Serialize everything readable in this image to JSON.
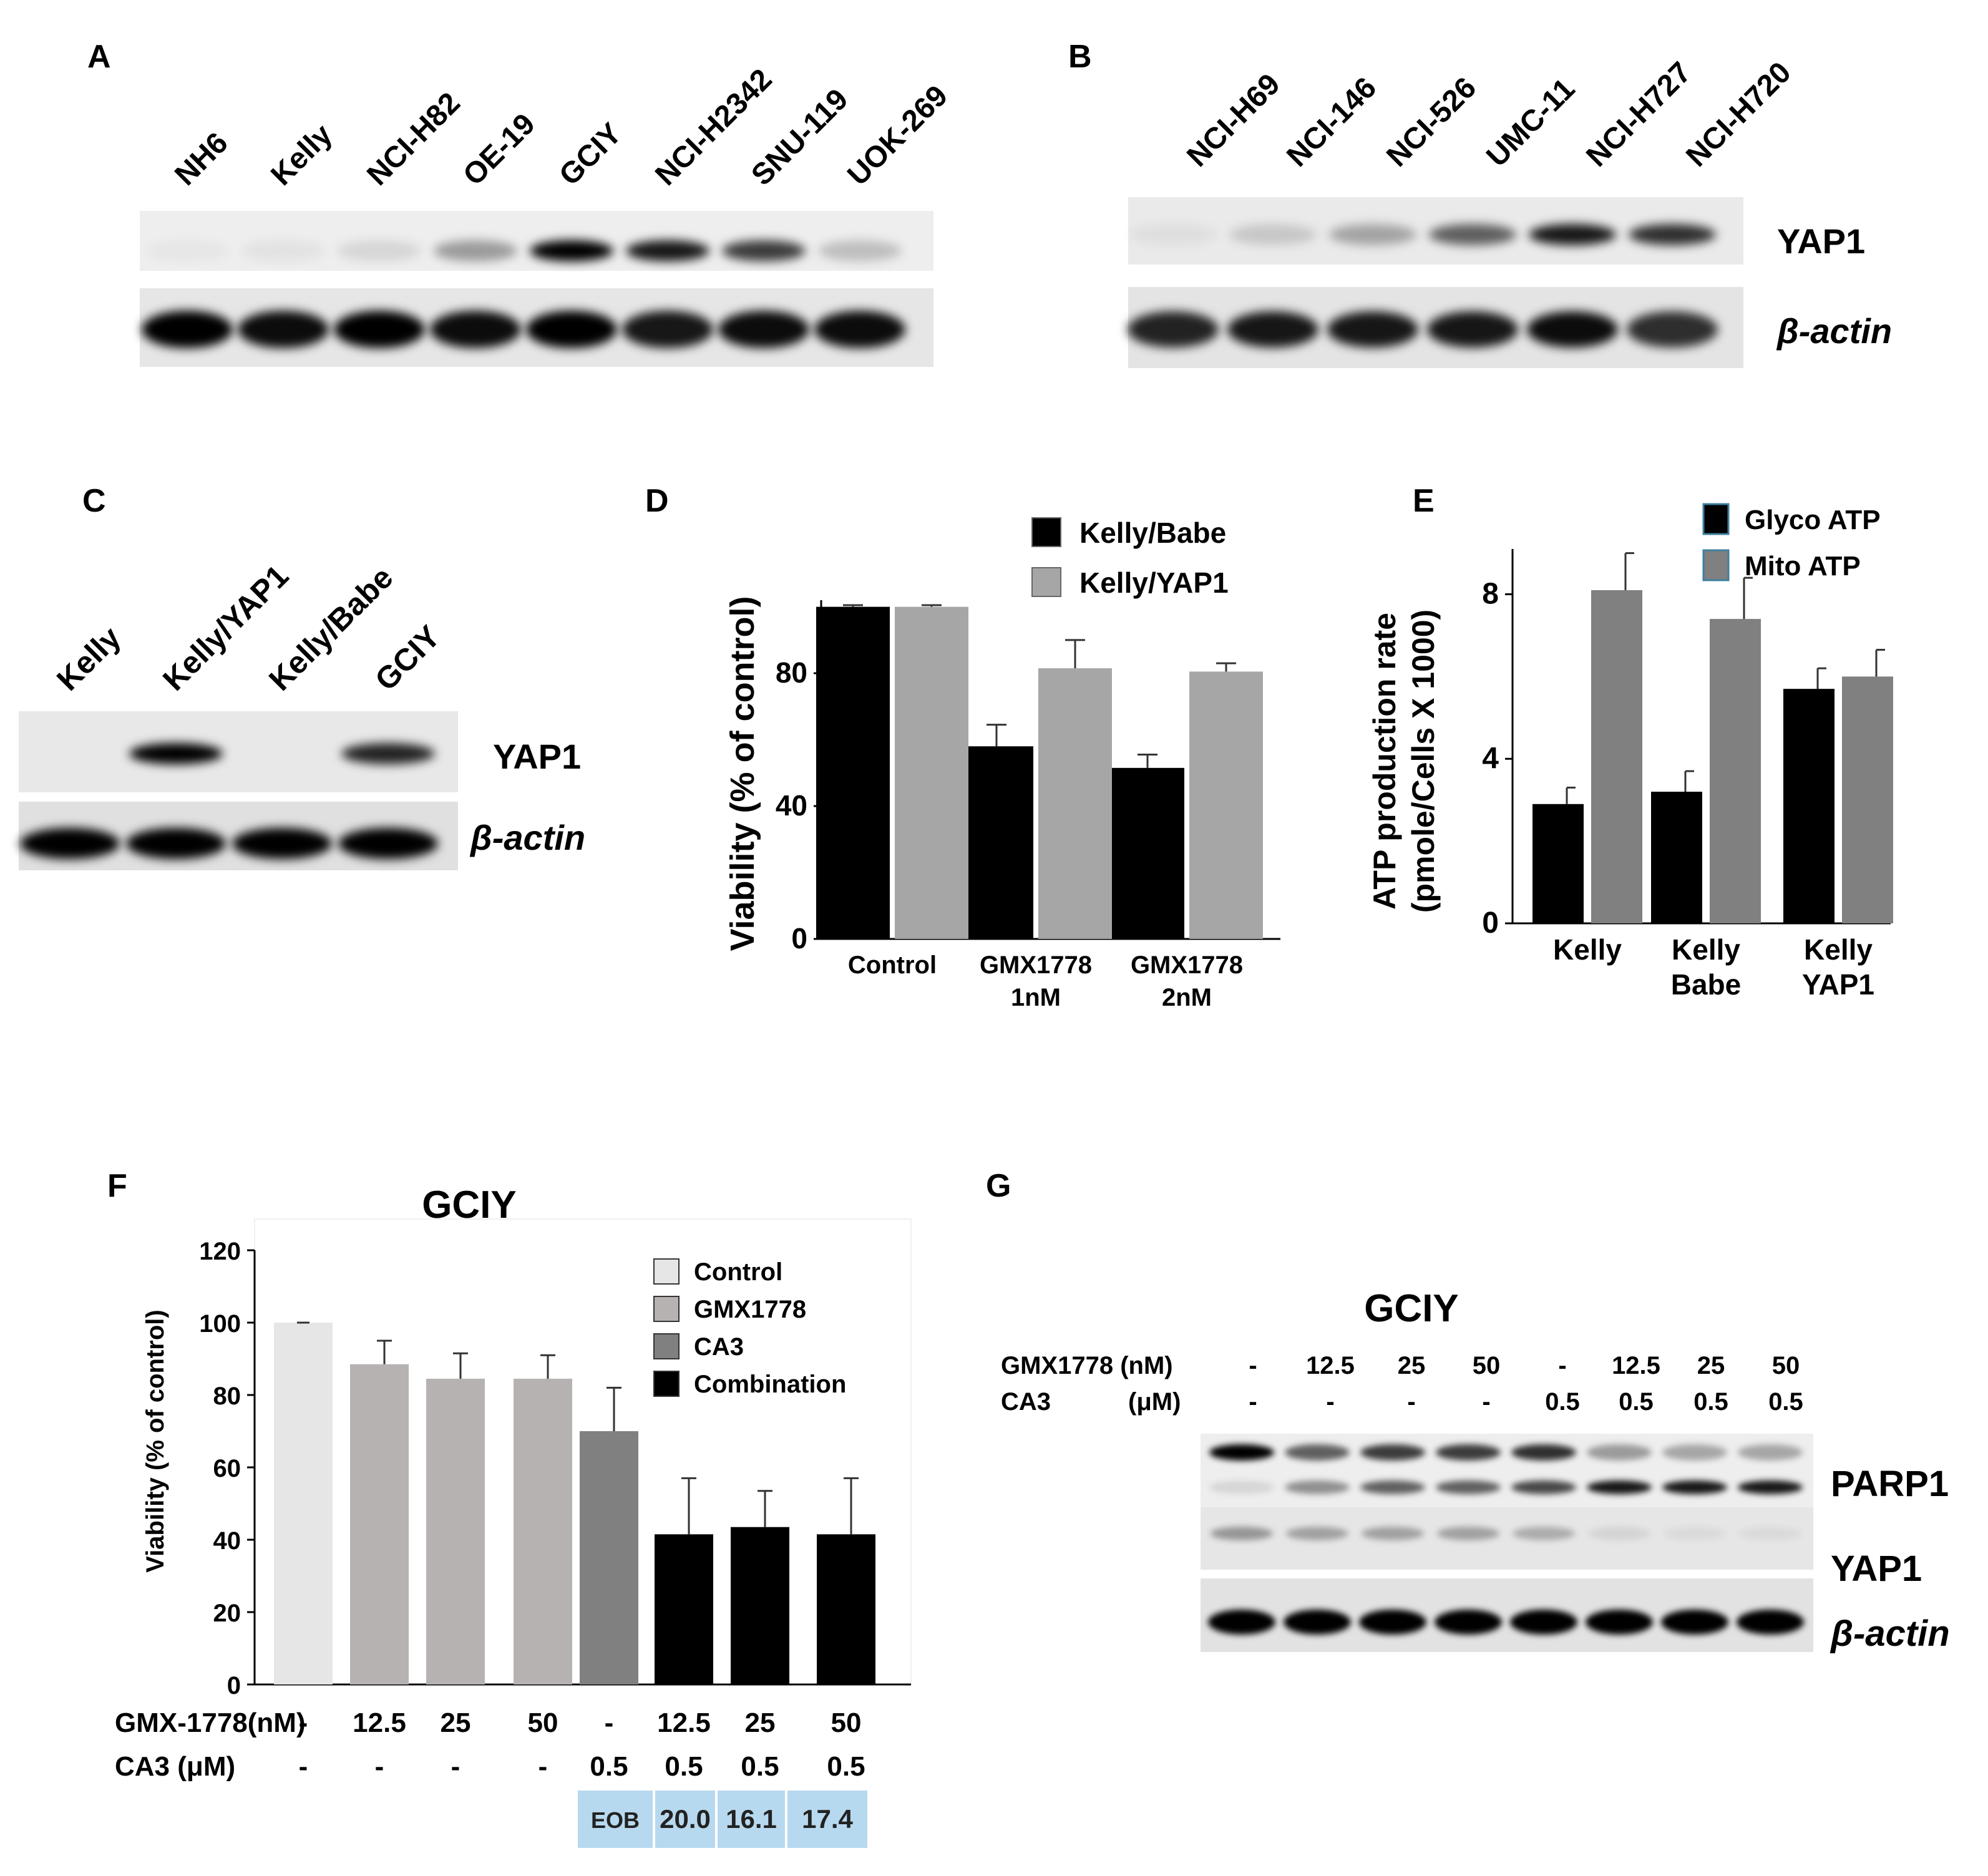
{
  "panels": {
    "A": {
      "letter": "A",
      "lanes": [
        "NH6",
        "Kelly",
        "NCI-H82",
        "OE-19",
        "GCIY",
        "NCI-H2342",
        "SNU-119",
        "UOK-269"
      ],
      "yap1_intensity": [
        0.03,
        0.05,
        0.1,
        0.35,
        1.0,
        0.9,
        0.75,
        0.2
      ],
      "actin_intensity": [
        1,
        0.95,
        1,
        0.95,
        1,
        0.9,
        0.95,
        0.95
      ]
    },
    "B": {
      "letter": "B",
      "lanes": [
        "NCI-H69",
        "NCI-146",
        "NCI-526",
        "UMC-11",
        "NCI-H727",
        "NCI-H720"
      ],
      "rows": [
        "YAP1",
        "β-actin"
      ],
      "yap1_intensity": [
        0.05,
        0.15,
        0.3,
        0.6,
        0.9,
        0.8
      ],
      "actin_intensity": [
        0.85,
        0.9,
        0.9,
        0.9,
        0.95,
        0.8
      ]
    },
    "C": {
      "letter": "C",
      "lanes": [
        "Kelly",
        "Kelly/YAP1",
        "Kelly/Babe",
        "GCIY"
      ],
      "rows": [
        "YAP1",
        "β-actin"
      ],
      "yap1_intensity": [
        0,
        1.0,
        0,
        0.85
      ],
      "actin_intensity": [
        1,
        1,
        1,
        1
      ]
    },
    "D": {
      "letter": "D",
      "chart_data": {
        "type": "bar",
        "categories": [
          [
            "Control"
          ],
          [
            "GMX1778",
            "1nM"
          ],
          [
            "GMX1778",
            "2nM"
          ]
        ],
        "series": [
          {
            "name": "Kelly/Babe",
            "color": "#000000",
            "values": [
              100,
              58,
              51.5
            ],
            "errors": [
              0.5,
              6.5,
              4
            ]
          },
          {
            "name": "Kelly/YAP1",
            "color": "#a6a6a6",
            "values": [
              100,
              81.5,
              80.5
            ],
            "errors": [
              0.5,
              8.5,
              2.5
            ]
          }
        ],
        "ylabel": "Viability (% of control)",
        "ylim": [
          0,
          102
        ],
        "yticks": [
          0,
          40,
          80
        ],
        "legend": "top-right"
      }
    },
    "E": {
      "letter": "E",
      "chart_data": {
        "type": "bar",
        "categories": [
          [
            "Kelly"
          ],
          [
            "Kelly",
            "Babe"
          ],
          [
            "Kelly",
            "YAP1"
          ]
        ],
        "series": [
          {
            "name": "Glyco ATP",
            "color": "#000000",
            "values": [
              2.9,
              3.2,
              5.7
            ],
            "errors": [
              0.4,
              0.5,
              0.5
            ]
          },
          {
            "name": "Mito  ATP",
            "color": "#808080",
            "values": [
              8.1,
              7.4,
              6.0
            ],
            "errors": [
              0.9,
              1.0,
              0.65
            ]
          }
        ],
        "ylabel": [
          "ATP production rate",
          "(pmole/Cells X 1000)"
        ],
        "ylim": [
          0,
          9.1
        ],
        "yticks": [
          0,
          4,
          8
        ],
        "legend": "top-right"
      }
    },
    "F": {
      "letter": "F",
      "chart_data": {
        "type": "bar",
        "title": "GCIY",
        "bars": [
          {
            "value": 100,
            "error": 0,
            "color": "#e6e6e6"
          },
          {
            "value": 88.5,
            "error": 6.5,
            "color": "#b7b2b2"
          },
          {
            "value": 84.5,
            "error": 7,
            "color": "#b7b2b2"
          },
          {
            "value": 84.5,
            "error": 6.5,
            "color": "#b7b2b2"
          },
          {
            "value": 70,
            "error": 12,
            "color": "#808080"
          },
          {
            "value": 41.5,
            "error": 15.5,
            "color": "#000000"
          },
          {
            "value": 43.5,
            "error": 10,
            "color": "#000000"
          },
          {
            "value": 41.5,
            "error": 15.5,
            "color": "#000000"
          }
        ],
        "legend_items": [
          {
            "name": "Control",
            "color": "#e6e6e6"
          },
          {
            "name": "GMX1778",
            "color": "#b7b2b2"
          },
          {
            "name": "CA3",
            "color": "#808080"
          },
          {
            "name": "Combination",
            "color": "#000000"
          }
        ],
        "ylabel": "Viability (% of control)",
        "ylim": [
          0,
          120
        ],
        "yticks": [
          0,
          20,
          40,
          60,
          80,
          100,
          120
        ],
        "treatment_rows": [
          {
            "label": "GMX-1778(nM)",
            "values": [
              "-",
              "12.5",
              "25",
              "50",
              "-",
              "12.5",
              "25",
              "50"
            ]
          },
          {
            "label": "CA3 (μM)",
            "values": [
              "-",
              "-",
              "-",
              "-",
              "0.5",
              "0.5",
              "0.5",
              "0.5"
            ]
          }
        ],
        "eob": [
          "EOB",
          "20.0",
          "16.1",
          "17.4"
        ],
        "legend": "top-right"
      }
    },
    "G": {
      "letter": "G",
      "title": "GCIY",
      "treatment_rows": [
        {
          "label": "GMX1778 (nM)",
          "values": [
            "-",
            "12.5",
            "25",
            "50",
            "-",
            "12.5",
            "25",
            "50"
          ]
        },
        {
          "label": "CA3",
          "unit": "(μM)",
          "values": [
            "-",
            "-",
            "-",
            "-",
            "0.5",
            "0.5",
            "0.5",
            "0.5"
          ]
        }
      ],
      "rows": [
        "PARP1",
        "YAP1",
        "β-actin"
      ],
      "parp1_full_intensity": [
        1.0,
        0.6,
        0.75,
        0.75,
        0.8,
        0.35,
        0.3,
        0.3
      ],
      "parp1_cleaved_intensity": [
        0.1,
        0.4,
        0.6,
        0.6,
        0.7,
        0.9,
        0.9,
        0.9
      ],
      "yap1_intensity": [
        0.35,
        0.3,
        0.3,
        0.3,
        0.25,
        0.08,
        0.05,
        0.05
      ],
      "actin_intensity": [
        1,
        1,
        1,
        1,
        1,
        1,
        1,
        1
      ]
    }
  }
}
